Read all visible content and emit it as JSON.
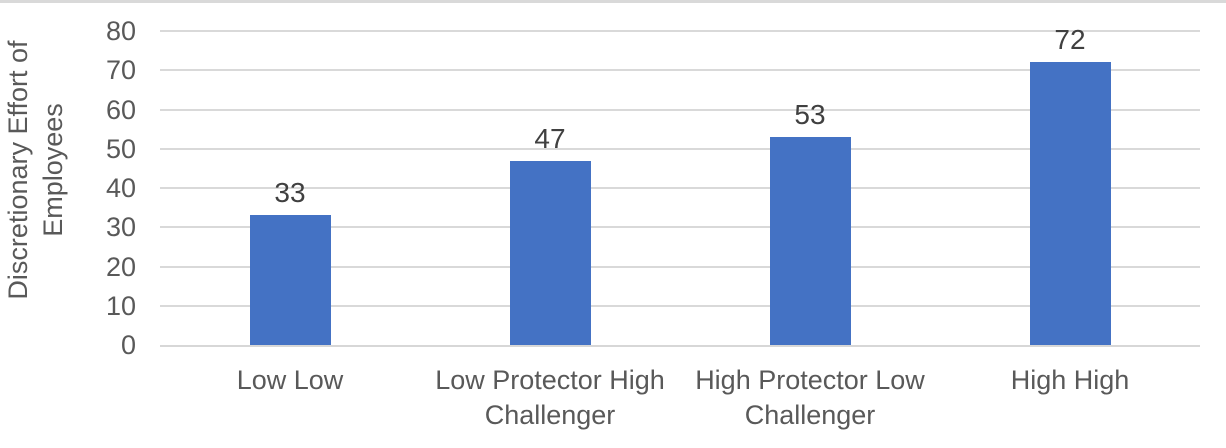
{
  "chart_data": {
    "type": "bar",
    "title": "",
    "xlabel": "",
    "ylabel": "Discretionary Effort of Employees",
    "categories": [
      "Low Low",
      "Low Protector High Challenger",
      "High Protector Low Challenger",
      "High High"
    ],
    "values": [
      33,
      47,
      53,
      72
    ],
    "data_labels": [
      "33",
      "47",
      "53",
      "72"
    ],
    "ylim": [
      0,
      80
    ],
    "yticks": [
      0,
      10,
      20,
      30,
      40,
      50,
      60,
      70,
      80
    ],
    "grid": "horizontal",
    "legend": "none",
    "colors": {
      "bar": "#4472C4",
      "gridline": "#D9D9D9",
      "axis_line": "#D7D7D7",
      "tick_label": "#595959",
      "category_label": "#595959",
      "data_label": "#404040",
      "axis_title": "#595959",
      "top_strip": "#D9D9D9",
      "background": "#FFFFFF"
    }
  }
}
